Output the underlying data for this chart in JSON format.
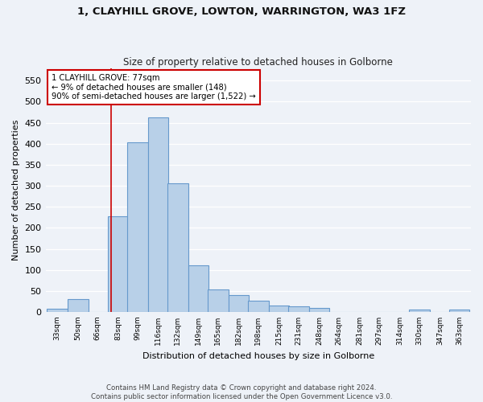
{
  "title": "1, CLAYHILL GROVE, LOWTON, WARRINGTON, WA3 1FZ",
  "subtitle": "Size of property relative to detached houses in Golborne",
  "xlabel": "Distribution of detached houses by size in Golborne",
  "ylabel": "Number of detached properties",
  "footer_line1": "Contains HM Land Registry data © Crown copyright and database right 2024.",
  "footer_line2": "Contains public sector information licensed under the Open Government Licence v3.0.",
  "categories": [
    "33sqm",
    "50sqm",
    "66sqm",
    "83sqm",
    "99sqm",
    "116sqm",
    "132sqm",
    "149sqm",
    "165sqm",
    "182sqm",
    "198sqm",
    "215sqm",
    "231sqm",
    "248sqm",
    "264sqm",
    "281sqm",
    "297sqm",
    "314sqm",
    "330sqm",
    "347sqm",
    "363sqm"
  ],
  "centers": [
    33,
    50,
    66,
    83,
    99,
    116,
    132,
    149,
    165,
    182,
    198,
    215,
    231,
    248,
    264,
    281,
    297,
    314,
    330,
    347,
    363
  ],
  "values": [
    7,
    30,
    0,
    228,
    403,
    463,
    306,
    110,
    53,
    40,
    27,
    15,
    13,
    10,
    0,
    0,
    0,
    0,
    5,
    0,
    5
  ],
  "bar_color": "#b8d0e8",
  "bar_edge_color": "#6699cc",
  "background_color": "#eef2f8",
  "red_line_x": 77,
  "annotation_text": "1 CLAYHILL GROVE: 77sqm\n← 9% of detached houses are smaller (148)\n90% of semi-detached houses are larger (1,522) →",
  "annotation_box_color": "#ffffff",
  "annotation_box_edge": "#cc0000",
  "ylim": [
    0,
    580
  ],
  "bin_width": 17
}
